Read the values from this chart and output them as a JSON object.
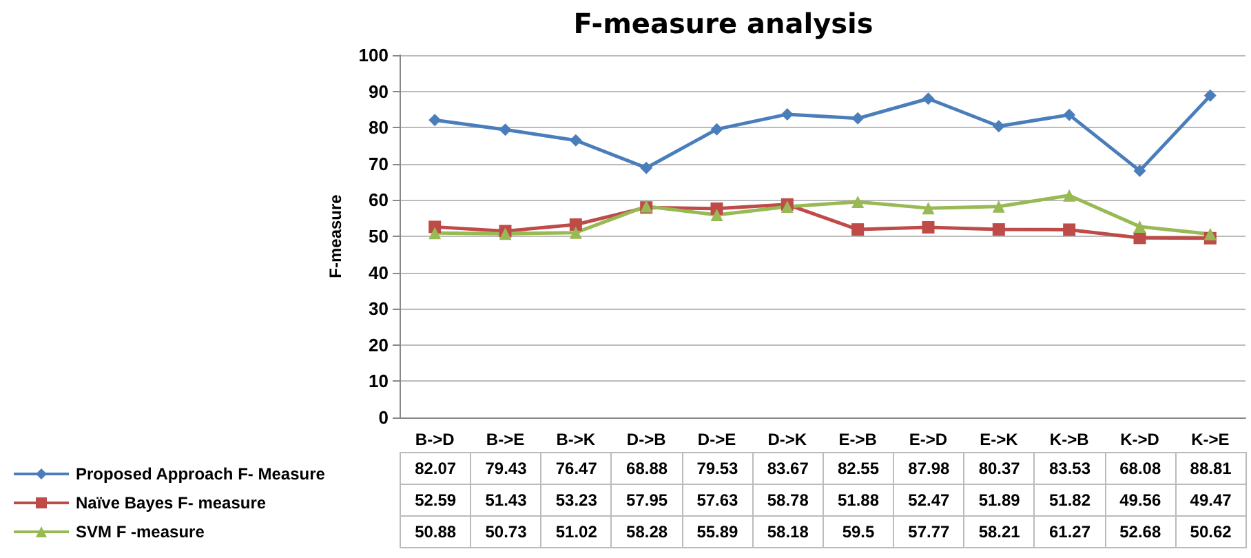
{
  "chart_data": {
    "type": "line",
    "title": "F-measure analysis",
    "ylabel": "F-measure",
    "categories": [
      "B->D",
      "B->E",
      "B->K",
      "D->B",
      "D->E",
      "D->K",
      "E->B",
      "E->D",
      "E->K",
      "K->B",
      "K->D",
      "K->E"
    ],
    "series": [
      {
        "name": "Proposed Approach F- Measure",
        "color": "#4a7ebb",
        "marker": "diamond",
        "values": [
          82.07,
          79.43,
          76.47,
          68.88,
          79.53,
          83.67,
          82.55,
          87.98,
          80.37,
          83.53,
          68.08,
          88.81
        ]
      },
      {
        "name": "Naïve Bayes F- measure",
        "color": "#be4b48",
        "marker": "square",
        "values": [
          52.59,
          51.43,
          53.23,
          57.95,
          57.63,
          58.78,
          51.88,
          52.47,
          51.89,
          51.82,
          49.56,
          49.47
        ]
      },
      {
        "name": "SVM F -measure",
        "color": "#98b954",
        "marker": "triangle",
        "values": [
          50.88,
          50.73,
          51.02,
          58.28,
          55.89,
          58.18,
          59.5,
          57.77,
          58.21,
          61.27,
          52.68,
          50.62
        ]
      }
    ],
    "ylim": [
      0,
      100
    ],
    "yticks": [
      0,
      10,
      20,
      30,
      40,
      50,
      60,
      70,
      80,
      90,
      100
    ],
    "grid": "y",
    "legend": "bottom left",
    "data_labels": true
  }
}
